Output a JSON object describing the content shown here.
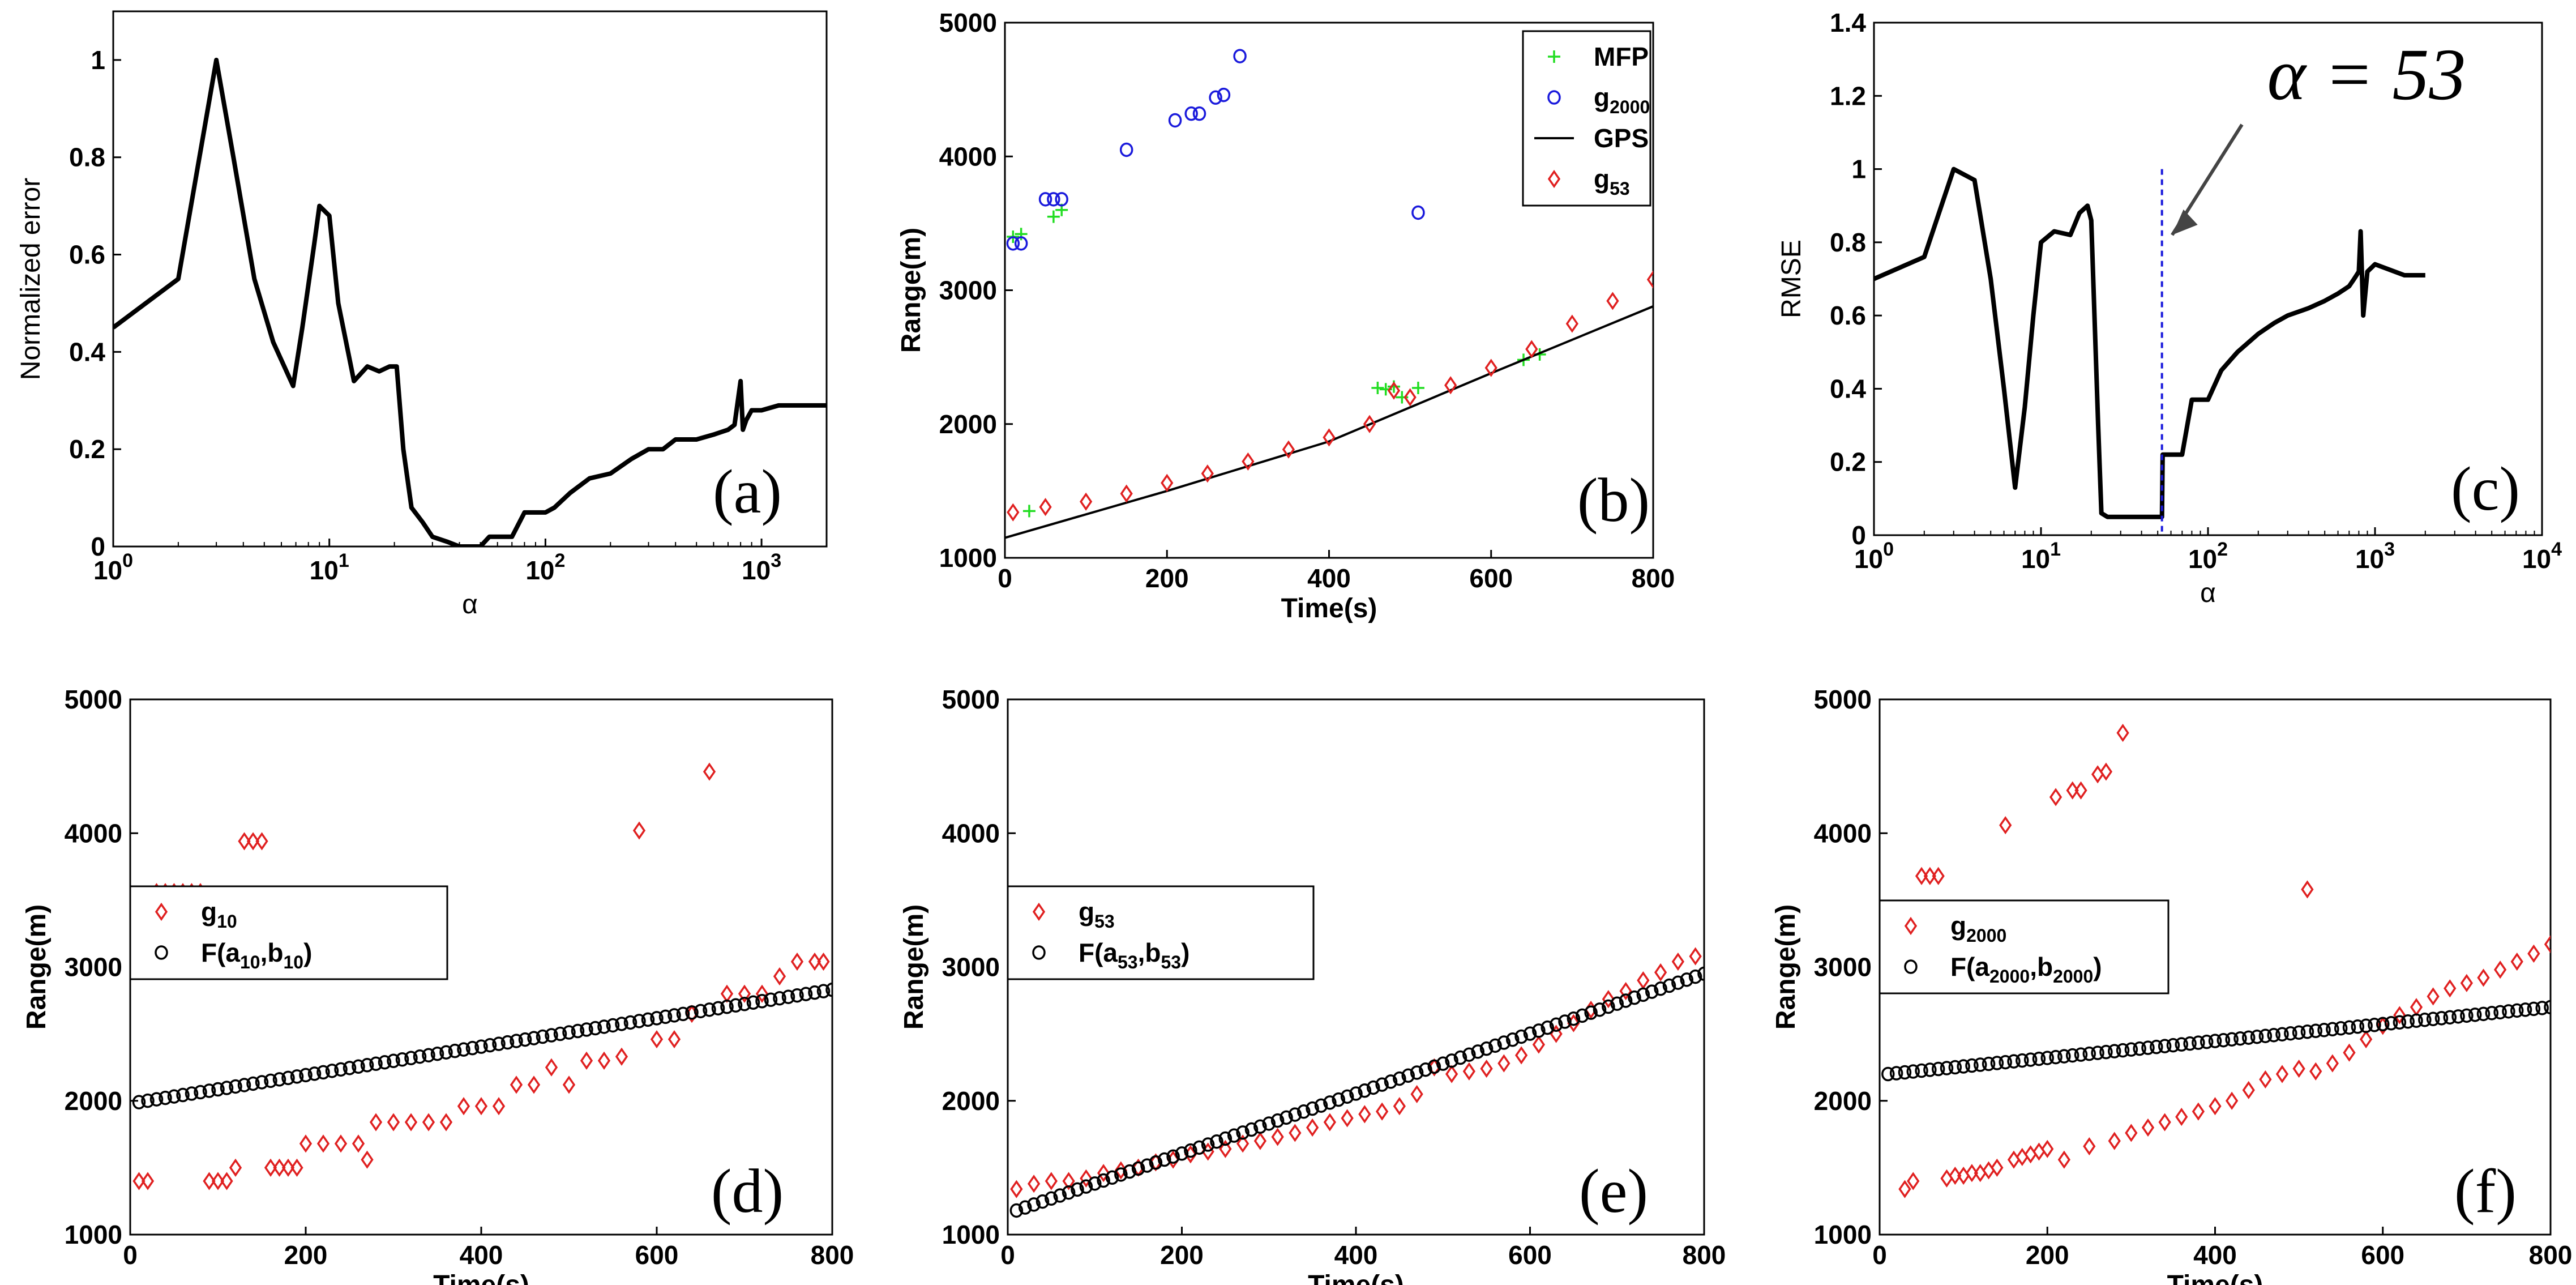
{
  "chart_data": [
    {
      "panel": "a",
      "type": "line",
      "panel_label": "(a)",
      "xlabel": "α",
      "ylabel": "Normalized error",
      "xscale": "log",
      "xlim": [
        1,
        2000
      ],
      "ylim": [
        0,
        1.1
      ],
      "xticks": [
        {
          "v": 1,
          "b": "10",
          "e": "0"
        },
        {
          "v": 10,
          "b": "10",
          "e": "1"
        },
        {
          "v": 100,
          "b": "10",
          "e": "2"
        },
        {
          "v": 1000,
          "b": "10",
          "e": "3"
        }
      ],
      "yticks": [
        {
          "v": 0,
          "t": "0"
        },
        {
          "v": 0.2,
          "t": "0.2"
        },
        {
          "v": 0.4,
          "t": "0.4"
        },
        {
          "v": 0.6,
          "t": "0.6"
        },
        {
          "v": 0.8,
          "t": "0.8"
        },
        {
          "v": 1,
          "t": "1"
        }
      ],
      "series": [
        {
          "name": "normalized error",
          "color": "#000000",
          "x": [
            1,
            2,
            3,
            3.6,
            4.5,
            5.5,
            6.8,
            7.5,
            8.5,
            9,
            10,
            11,
            13,
            15,
            17,
            19,
            20.5,
            22,
            24,
            27,
            30,
            35,
            40,
            45,
            50,
            55,
            60,
            70,
            80,
            90,
            100,
            110,
            130,
            160,
            200,
            250,
            300,
            350,
            400,
            450,
            500,
            600,
            700,
            750,
            800,
            820,
            850,
            900,
            1000,
            1200,
            1500,
            2000
          ],
          "y": [
            0.45,
            0.55,
            1.0,
            0.8,
            0.55,
            0.42,
            0.33,
            0.45,
            0.62,
            0.7,
            0.68,
            0.5,
            0.34,
            0.37,
            0.36,
            0.37,
            0.37,
            0.2,
            0.08,
            0.05,
            0.02,
            0.01,
            0.0,
            0.0,
            0.0,
            0.02,
            0.02,
            0.02,
            0.07,
            0.07,
            0.07,
            0.08,
            0.11,
            0.14,
            0.15,
            0.18,
            0.2,
            0.2,
            0.22,
            0.22,
            0.22,
            0.23,
            0.24,
            0.25,
            0.34,
            0.24,
            0.26,
            0.28,
            0.28,
            0.29,
            0.29,
            0.29
          ]
        }
      ]
    },
    {
      "panel": "b",
      "type": "scatter",
      "panel_label": "(b)",
      "xlabel": "Time(s)",
      "ylabel": "Range(m)",
      "xlim": [
        0,
        800
      ],
      "ylim": [
        1000,
        5000
      ],
      "xticks": [
        0,
        200,
        400,
        600,
        800
      ],
      "yticks": [
        1000,
        2000,
        3000,
        4000,
        5000
      ],
      "legend": [
        {
          "name": "MFP",
          "sub": "",
          "marker": "plus",
          "color": "#22dd22"
        },
        {
          "name": "g",
          "sub": "2000",
          "marker": "circle",
          "color": "#1a1adc"
        },
        {
          "name": "GPS",
          "sub": "",
          "marker": "line",
          "color": "#000000"
        },
        {
          "name": "g",
          "sub": "53",
          "marker": "diamond",
          "color": "#e02020"
        }
      ],
      "series": [
        {
          "name": "MFP",
          "marker": "plus",
          "color": "#22dd22",
          "x": [
            10,
            20,
            30,
            60,
            70,
            460,
            470,
            480,
            490,
            510,
            640,
            660
          ],
          "y": [
            3400,
            3420,
            1350,
            3550,
            3600,
            2270,
            2260,
            2280,
            2200,
            2270,
            2480,
            2520
          ]
        },
        {
          "name": "g2000",
          "marker": "circle",
          "color": "#1a1adc",
          "x": [
            10,
            20,
            50,
            60,
            70,
            150,
            210,
            230,
            240,
            260,
            270,
            290,
            510
          ],
          "y": [
            3350,
            3350,
            3680,
            3680,
            3680,
            4050,
            4270,
            4320,
            4320,
            4440,
            4460,
            4750,
            3580
          ]
        },
        {
          "name": "GPS",
          "marker": "line",
          "color": "#000000",
          "x": [
            0,
            200,
            400,
            600,
            800
          ],
          "y": [
            1150,
            1500,
            1870,
            2380,
            2880
          ]
        },
        {
          "name": "g53",
          "marker": "diamond",
          "color": "#e02020",
          "x": [
            10,
            50,
            100,
            150,
            200,
            250,
            300,
            350,
            400,
            450,
            480,
            500,
            550,
            600,
            650,
            700,
            750,
            800
          ],
          "y": [
            1340,
            1380,
            1420,
            1480,
            1560,
            1630,
            1720,
            1810,
            1900,
            2000,
            2250,
            2200,
            2290,
            2420,
            2560,
            2750,
            2920,
            3080
          ]
        }
      ]
    },
    {
      "panel": "c",
      "type": "line",
      "panel_label": "(c)",
      "xlabel": "α",
      "ylabel": "RMSE",
      "xscale": "log",
      "xlim": [
        1,
        10000
      ],
      "ylim": [
        0,
        1.4
      ],
      "xticks": [
        {
          "v": 1,
          "b": "10",
          "e": "0"
        },
        {
          "v": 10,
          "b": "10",
          "e": "1"
        },
        {
          "v": 100,
          "b": "10",
          "e": "2"
        },
        {
          "v": 1000,
          "b": "10",
          "e": "3"
        },
        {
          "v": 10000,
          "b": "10",
          "e": "4"
        }
      ],
      "yticks": [
        {
          "v": 0,
          "t": "0"
        },
        {
          "v": 0.2,
          "t": "0.2"
        },
        {
          "v": 0.4,
          "t": "0.4"
        },
        {
          "v": 0.6,
          "t": "0.6"
        },
        {
          "v": 0.8,
          "t": "0.8"
        },
        {
          "v": 1,
          "t": "1"
        },
        {
          "v": 1.2,
          "t": "1.2"
        },
        {
          "v": 1.4,
          "t": "1.4"
        }
      ],
      "annotation": {
        "text": "α = 53",
        "x": 53,
        "color": "#1a1adc"
      },
      "series": [
        {
          "name": "RMSE",
          "color": "#000000",
          "x": [
            1,
            2,
            3,
            4,
            5,
            6,
            7,
            8,
            9,
            10,
            12,
            15,
            17,
            19,
            20,
            22,
            23,
            25,
            30,
            40,
            53,
            53.5,
            60,
            70,
            80,
            100,
            120,
            150,
            200,
            250,
            300,
            400,
            500,
            600,
            700,
            750,
            800,
            820,
            850,
            900,
            1000,
            1500,
            2000
          ],
          "y": [
            0.7,
            0.76,
            1.0,
            0.97,
            0.7,
            0.4,
            0.13,
            0.35,
            0.6,
            0.8,
            0.83,
            0.82,
            0.88,
            0.9,
            0.86,
            0.3,
            0.06,
            0.05,
            0.05,
            0.05,
            0.05,
            0.22,
            0.22,
            0.22,
            0.37,
            0.37,
            0.45,
            0.5,
            0.55,
            0.58,
            0.6,
            0.62,
            0.64,
            0.66,
            0.68,
            0.7,
            0.72,
            0.83,
            0.6,
            0.72,
            0.74,
            0.71,
            0.71
          ]
        }
      ]
    },
    {
      "panel": "d",
      "type": "scatter",
      "panel_label": "(d)",
      "xlabel": "Time(s)",
      "ylabel": "Range(m)",
      "xlim": [
        0,
        800
      ],
      "ylim": [
        1000,
        5000
      ],
      "xticks": [
        0,
        200,
        400,
        600,
        800
      ],
      "yticks": [
        1000,
        2000,
        3000,
        4000,
        5000
      ],
      "legend": [
        {
          "name": "g",
          "sub": "10",
          "marker": "diamond",
          "color": "#e02020"
        },
        {
          "name": "F(a",
          "sub": "10",
          "name2": ",b",
          "sub2": "10",
          "tail": ")",
          "marker": "circle",
          "color": "#000000"
        }
      ],
      "series": [
        {
          "name": "g10",
          "marker": "diamond",
          "color": "#e02020",
          "x": [
            10,
            20,
            30,
            40,
            50,
            60,
            70,
            80,
            90,
            100,
            110,
            120,
            130,
            140,
            150,
            160,
            170,
            180,
            190,
            200,
            220,
            240,
            260,
            270,
            280,
            300,
            320,
            340,
            360,
            380,
            400,
            420,
            440,
            460,
            480,
            500,
            520,
            540,
            560,
            580,
            600,
            620,
            640,
            660,
            680,
            700,
            720,
            740,
            760,
            780,
            790
          ],
          "y": [
            1400,
            1400,
            3560,
            3560,
            3560,
            3560,
            3560,
            3560,
            1400,
            1400,
            1400,
            1500,
            3940,
            3940,
            3940,
            1500,
            1500,
            1500,
            1500,
            1680,
            1680,
            1680,
            1680,
            1560,
            1840,
            1840,
            1840,
            1840,
            1840,
            1960,
            1960,
            1960,
            2120,
            2120,
            2250,
            2120,
            2300,
            2300,
            2330,
            4020,
            2460,
            2460,
            2650,
            4460,
            2800,
            2800,
            2800,
            2930,
            3040,
            3040,
            3040
          ]
        },
        {
          "name": "F(a10,b10)",
          "marker": "circle",
          "color": "#000000",
          "fit": [
            1990,
            2830
          ],
          "n": 80
        }
      ]
    },
    {
      "panel": "e",
      "type": "scatter",
      "panel_label": "(e)",
      "xlabel": "Time(s)",
      "ylabel": "Range(m)",
      "xlim": [
        0,
        800
      ],
      "ylim": [
        1000,
        5000
      ],
      "xticks": [
        0,
        200,
        400,
        600,
        800
      ],
      "yticks": [
        1000,
        2000,
        3000,
        4000,
        5000
      ],
      "legend": [
        {
          "name": "g",
          "sub": "53",
          "marker": "diamond",
          "color": "#e02020"
        },
        {
          "name": "F(a",
          "sub": "53",
          "name2": ",b",
          "sub2": "53",
          "tail": ")",
          "marker": "circle",
          "color": "#000000"
        }
      ],
      "series": [
        {
          "name": "g53",
          "marker": "diamond",
          "color": "#e02020",
          "x": [
            10,
            30,
            50,
            70,
            90,
            110,
            130,
            150,
            170,
            190,
            210,
            230,
            250,
            270,
            290,
            310,
            330,
            350,
            370,
            390,
            410,
            430,
            450,
            470,
            490,
            510,
            530,
            550,
            570,
            590,
            610,
            630,
            650,
            670,
            690,
            710,
            730,
            750,
            770,
            790
          ],
          "y": [
            1340,
            1380,
            1400,
            1400,
            1420,
            1460,
            1480,
            1500,
            1540,
            1560,
            1600,
            1620,
            1640,
            1680,
            1700,
            1730,
            1760,
            1800,
            1840,
            1870,
            1900,
            1920,
            1960,
            2050,
            2250,
            2200,
            2220,
            2240,
            2280,
            2340,
            2420,
            2500,
            2580,
            2680,
            2760,
            2820,
            2900,
            2960,
            3040,
            3080
          ]
        },
        {
          "name": "F(a53,b53)",
          "marker": "circle",
          "color": "#000000",
          "fit": [
            1180,
            2950
          ],
          "n": 80
        }
      ]
    },
    {
      "panel": "f",
      "type": "scatter",
      "panel_label": "(f)",
      "xlabel": "Time(s)",
      "ylabel": "Range(m)",
      "xlim": [
        0,
        800
      ],
      "ylim": [
        1000,
        5000
      ],
      "xticks": [
        0,
        200,
        400,
        600,
        800
      ],
      "yticks": [
        1000,
        2000,
        3000,
        4000,
        5000
      ],
      "legend": [
        {
          "name": "g",
          "sub": "2000",
          "marker": "diamond",
          "color": "#e02020"
        },
        {
          "name": "F(a",
          "sub": "2000",
          "name2": ",b",
          "sub2": "2000",
          "tail": ")",
          "marker": "circle",
          "color": "#000000"
        }
      ],
      "series": [
        {
          "name": "g2000",
          "marker": "diamond",
          "color": "#e02020",
          "x": [
            10,
            20,
            30,
            40,
            50,
            60,
            70,
            80,
            90,
            100,
            110,
            120,
            130,
            140,
            150,
            160,
            170,
            180,
            190,
            200,
            210,
            220,
            230,
            240,
            250,
            260,
            270,
            280,
            290,
            300,
            320,
            340,
            360,
            380,
            400,
            420,
            440,
            460,
            480,
            500,
            510,
            520,
            540,
            560,
            580,
            600,
            620,
            640,
            660,
            680,
            700,
            720,
            740,
            760,
            780,
            800
          ],
          "y": [
            3350,
            3350,
            1340,
            1400,
            3680,
            3680,
            3680,
            1420,
            1440,
            1440,
            1460,
            1460,
            1480,
            1500,
            4060,
            1560,
            1580,
            1600,
            1620,
            1640,
            4270,
            1560,
            4320,
            4320,
            1660,
            4440,
            4460,
            1700,
            4750,
            1760,
            1800,
            1840,
            1880,
            1920,
            1960,
            2000,
            2080,
            2160,
            2200,
            2240,
            3580,
            2220,
            2280,
            2360,
            2460,
            2560,
            2640,
            2700,
            2780,
            2840,
            2880,
            2920,
            2980,
            3040,
            3100,
            3170
          ]
        },
        {
          "name": "F(a2000,b2000)",
          "marker": "circle",
          "color": "#000000",
          "fit": [
            2200,
            2700
          ],
          "n": 80
        }
      ]
    }
  ]
}
